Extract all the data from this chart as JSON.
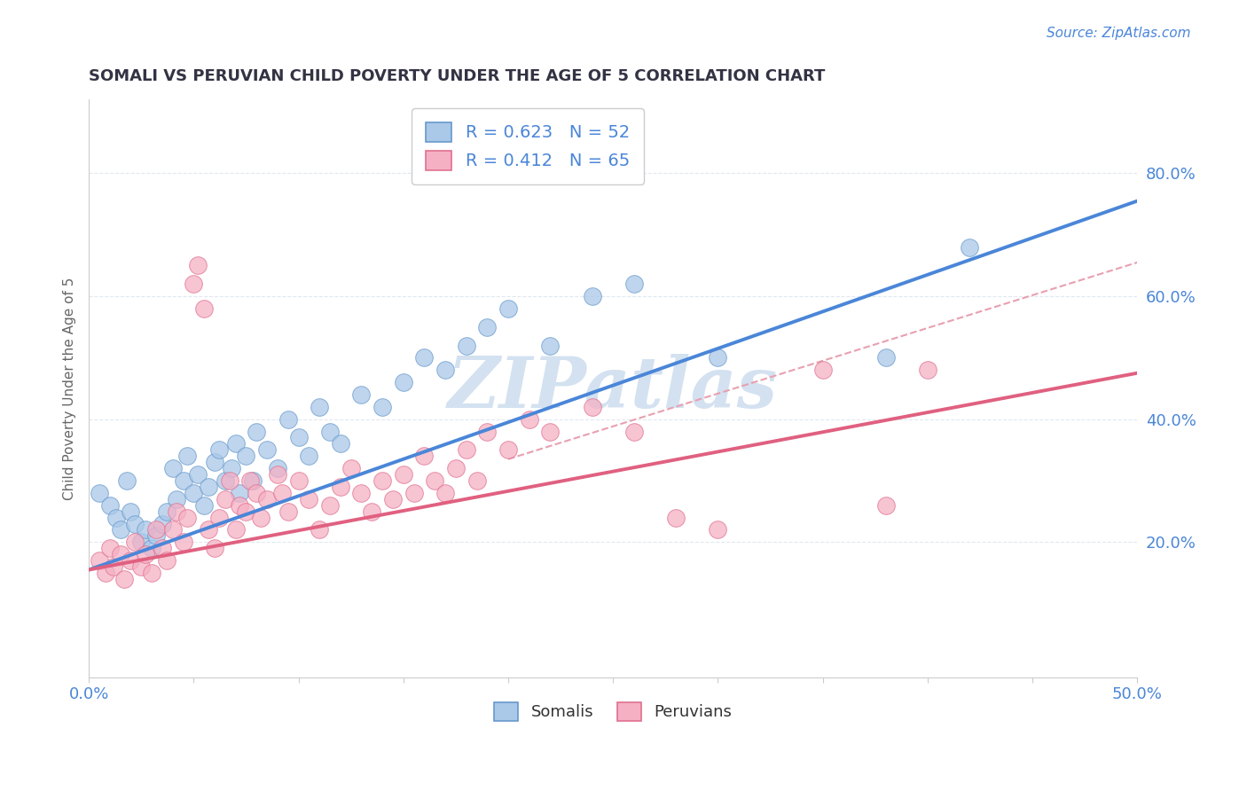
{
  "title": "SOMALI VS PERUVIAN CHILD POVERTY UNDER THE AGE OF 5 CORRELATION CHART",
  "source": "Source: ZipAtlas.com",
  "ylabel": "Child Poverty Under the Age of 5",
  "right_ytick_labels": [
    "20.0%",
    "40.0%",
    "60.0%",
    "80.0%"
  ],
  "right_ytick_values": [
    0.2,
    0.4,
    0.6,
    0.8
  ],
  "xlim": [
    0.0,
    0.5
  ],
  "ylim": [
    -0.02,
    0.92
  ],
  "somali_R": 0.623,
  "somali_N": 52,
  "peruvian_R": 0.412,
  "peruvian_N": 65,
  "somali_fill_color": "#aac8e8",
  "peruvian_fill_color": "#f5b0c4",
  "somali_edge_color": "#6699cc",
  "peruvian_edge_color": "#e07090",
  "somali_line_color": "#4a86d8",
  "peruvian_line_color": "#e06080",
  "dashed_line_color": "#e8a0b0",
  "watermark_color": "#ccdcee",
  "title_color": "#333344",
  "source_color": "#4a86d8",
  "legend_text_color": "#4a86d8",
  "bottom_legend_color": "#333333",
  "grid_color": "#e0e8f0",
  "background_color": "#ffffff",
  "somali_scatter": [
    [
      0.005,
      0.28
    ],
    [
      0.01,
      0.26
    ],
    [
      0.013,
      0.24
    ],
    [
      0.015,
      0.22
    ],
    [
      0.018,
      0.3
    ],
    [
      0.02,
      0.25
    ],
    [
      0.022,
      0.23
    ],
    [
      0.025,
      0.2
    ],
    [
      0.027,
      0.22
    ],
    [
      0.03,
      0.19
    ],
    [
      0.032,
      0.21
    ],
    [
      0.035,
      0.23
    ],
    [
      0.037,
      0.25
    ],
    [
      0.04,
      0.32
    ],
    [
      0.042,
      0.27
    ],
    [
      0.045,
      0.3
    ],
    [
      0.047,
      0.34
    ],
    [
      0.05,
      0.28
    ],
    [
      0.052,
      0.31
    ],
    [
      0.055,
      0.26
    ],
    [
      0.057,
      0.29
    ],
    [
      0.06,
      0.33
    ],
    [
      0.062,
      0.35
    ],
    [
      0.065,
      0.3
    ],
    [
      0.068,
      0.32
    ],
    [
      0.07,
      0.36
    ],
    [
      0.072,
      0.28
    ],
    [
      0.075,
      0.34
    ],
    [
      0.078,
      0.3
    ],
    [
      0.08,
      0.38
    ],
    [
      0.085,
      0.35
    ],
    [
      0.09,
      0.32
    ],
    [
      0.095,
      0.4
    ],
    [
      0.1,
      0.37
    ],
    [
      0.105,
      0.34
    ],
    [
      0.11,
      0.42
    ],
    [
      0.115,
      0.38
    ],
    [
      0.12,
      0.36
    ],
    [
      0.13,
      0.44
    ],
    [
      0.14,
      0.42
    ],
    [
      0.15,
      0.46
    ],
    [
      0.16,
      0.5
    ],
    [
      0.17,
      0.48
    ],
    [
      0.18,
      0.52
    ],
    [
      0.19,
      0.55
    ],
    [
      0.2,
      0.58
    ],
    [
      0.22,
      0.52
    ],
    [
      0.24,
      0.6
    ],
    [
      0.26,
      0.62
    ],
    [
      0.3,
      0.5
    ],
    [
      0.38,
      0.5
    ],
    [
      0.42,
      0.68
    ]
  ],
  "peruvian_scatter": [
    [
      0.005,
      0.17
    ],
    [
      0.008,
      0.15
    ],
    [
      0.01,
      0.19
    ],
    [
      0.012,
      0.16
    ],
    [
      0.015,
      0.18
    ],
    [
      0.017,
      0.14
    ],
    [
      0.02,
      0.17
    ],
    [
      0.022,
      0.2
    ],
    [
      0.025,
      0.16
    ],
    [
      0.027,
      0.18
    ],
    [
      0.03,
      0.15
    ],
    [
      0.032,
      0.22
    ],
    [
      0.035,
      0.19
    ],
    [
      0.037,
      0.17
    ],
    [
      0.04,
      0.22
    ],
    [
      0.042,
      0.25
    ],
    [
      0.045,
      0.2
    ],
    [
      0.047,
      0.24
    ],
    [
      0.05,
      0.62
    ],
    [
      0.052,
      0.65
    ],
    [
      0.055,
      0.58
    ],
    [
      0.057,
      0.22
    ],
    [
      0.06,
      0.19
    ],
    [
      0.062,
      0.24
    ],
    [
      0.065,
      0.27
    ],
    [
      0.067,
      0.3
    ],
    [
      0.07,
      0.22
    ],
    [
      0.072,
      0.26
    ],
    [
      0.075,
      0.25
    ],
    [
      0.077,
      0.3
    ],
    [
      0.08,
      0.28
    ],
    [
      0.082,
      0.24
    ],
    [
      0.085,
      0.27
    ],
    [
      0.09,
      0.31
    ],
    [
      0.092,
      0.28
    ],
    [
      0.095,
      0.25
    ],
    [
      0.1,
      0.3
    ],
    [
      0.105,
      0.27
    ],
    [
      0.11,
      0.22
    ],
    [
      0.115,
      0.26
    ],
    [
      0.12,
      0.29
    ],
    [
      0.125,
      0.32
    ],
    [
      0.13,
      0.28
    ],
    [
      0.135,
      0.25
    ],
    [
      0.14,
      0.3
    ],
    [
      0.145,
      0.27
    ],
    [
      0.15,
      0.31
    ],
    [
      0.155,
      0.28
    ],
    [
      0.16,
      0.34
    ],
    [
      0.165,
      0.3
    ],
    [
      0.17,
      0.28
    ],
    [
      0.175,
      0.32
    ],
    [
      0.18,
      0.35
    ],
    [
      0.185,
      0.3
    ],
    [
      0.19,
      0.38
    ],
    [
      0.2,
      0.35
    ],
    [
      0.21,
      0.4
    ],
    [
      0.22,
      0.38
    ],
    [
      0.24,
      0.42
    ],
    [
      0.26,
      0.38
    ],
    [
      0.28,
      0.24
    ],
    [
      0.3,
      0.22
    ],
    [
      0.35,
      0.48
    ],
    [
      0.38,
      0.26
    ],
    [
      0.4,
      0.48
    ]
  ],
  "somali_line": {
    "x": [
      0.0,
      0.5
    ],
    "y": [
      0.155,
      0.755
    ]
  },
  "peruvian_line": {
    "x": [
      0.0,
      0.5
    ],
    "y": [
      0.155,
      0.475
    ]
  },
  "dashed_line": {
    "x": [
      0.2,
      0.5
    ],
    "y": [
      0.335,
      0.655
    ]
  }
}
